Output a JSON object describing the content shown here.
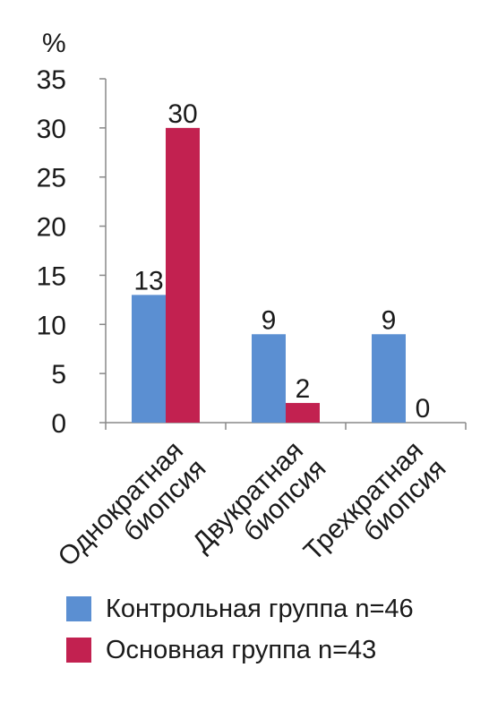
{
  "chart_data": {
    "type": "bar",
    "ylabel": "%",
    "ylim": [
      0,
      35
    ],
    "yticks": [
      0,
      5,
      10,
      15,
      20,
      25,
      30,
      35
    ],
    "categories": [
      [
        "Однократная",
        "биопсия"
      ],
      [
        "Двукратная",
        "биопсия"
      ],
      [
        "Трехкратная",
        "биопсия"
      ]
    ],
    "series": [
      {
        "name": "Контрольная группа n=46",
        "color": "#5b8fd2",
        "values": [
          13,
          9,
          9
        ]
      },
      {
        "name": "Основная группа n=43",
        "color": "#c22150",
        "values": [
          30,
          2,
          0
        ]
      }
    ],
    "legend_position": "bottom",
    "grid": false
  }
}
